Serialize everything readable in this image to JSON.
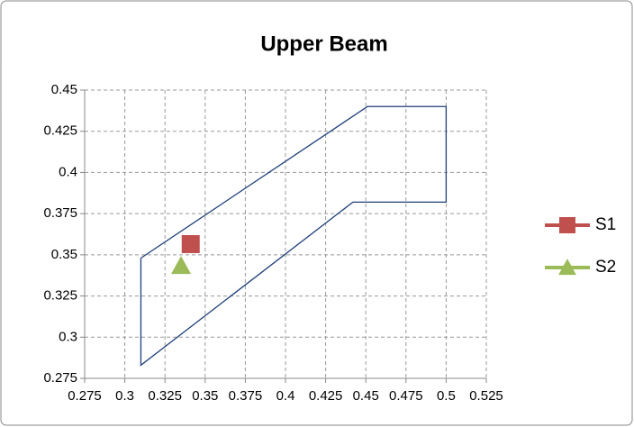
{
  "chart_data": {
    "type": "scatter",
    "title": "Upper Beam",
    "xlim": [
      0.275,
      0.525
    ],
    "xticks": [
      0.275,
      0.3,
      0.325,
      0.35,
      0.375,
      0.4,
      0.425,
      0.45,
      0.475,
      0.5,
      0.525
    ],
    "ylim": [
      0.275,
      0.45
    ],
    "yticks": [
      0.275,
      0.3,
      0.325,
      0.35,
      0.375,
      0.4,
      0.425,
      0.45
    ],
    "grid": true,
    "legend": "right",
    "series": [
      {
        "color": "#1f3f7a",
        "mode": "line",
        "x": [
          0.31,
          0.451,
          0.5,
          0.5,
          0.442,
          0.31,
          0.31
        ],
        "values": [
          0.348,
          0.44,
          0.44,
          0.382,
          0.382,
          0.283,
          0.348
        ]
      },
      {
        "name": "S1",
        "color": "#c0504d",
        "mode": "marker",
        "marker": "square",
        "x": [
          0.341
        ],
        "values": [
          0.3565
        ]
      },
      {
        "name": "S2",
        "color": "#9bbb59",
        "mode": "marker",
        "marker": "triangle",
        "x": [
          0.335
        ],
        "values": [
          0.3433
        ]
      }
    ]
  }
}
